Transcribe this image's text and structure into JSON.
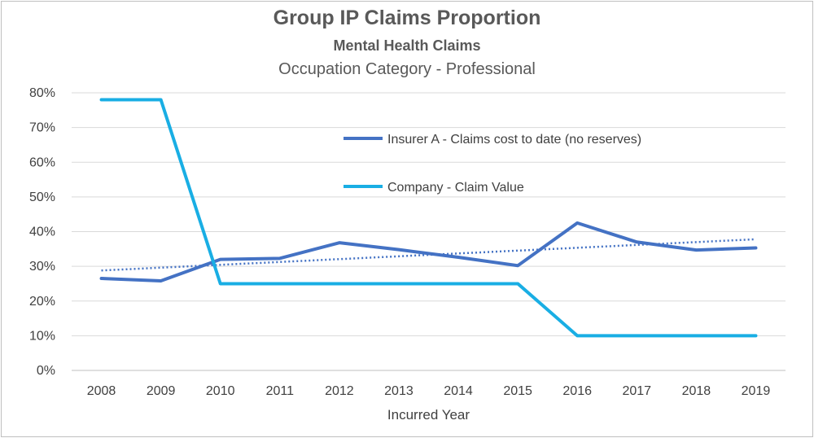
{
  "chart_data": {
    "type": "line",
    "title": "Group IP Claims Proportion",
    "subtitle": "Mental Health Claims",
    "subtitle2": "Occupation Category - Professional",
    "xlabel": "Incurred Year",
    "ylabel": "",
    "categories": [
      "2008",
      "2009",
      "2010",
      "2011",
      "2012",
      "2013",
      "2014",
      "2015",
      "2016",
      "2017",
      "2018",
      "2019"
    ],
    "y_ticks": [
      "0%",
      "10%",
      "20%",
      "30%",
      "40%",
      "50%",
      "60%",
      "70%",
      "80%"
    ],
    "ylim": [
      0,
      80
    ],
    "grid": "horizontal",
    "legend_position": "top-right, inside plot",
    "series": [
      {
        "name": "Insurer A - Claims cost to date (no reserves)",
        "color": "#4472c4",
        "values": [
          26.5,
          25.8,
          32,
          32.3,
          36.8,
          34.8,
          32.6,
          30.2,
          42.5,
          37,
          34.7,
          35.3
        ],
        "trendline": {
          "start": 28.8,
          "end": 37.8,
          "style": "dotted"
        }
      },
      {
        "name": "Company - Claim Value",
        "color": "#19aee4",
        "values": [
          78,
          78,
          25,
          25,
          25,
          25,
          25,
          25,
          10,
          10,
          10,
          10
        ]
      }
    ]
  }
}
